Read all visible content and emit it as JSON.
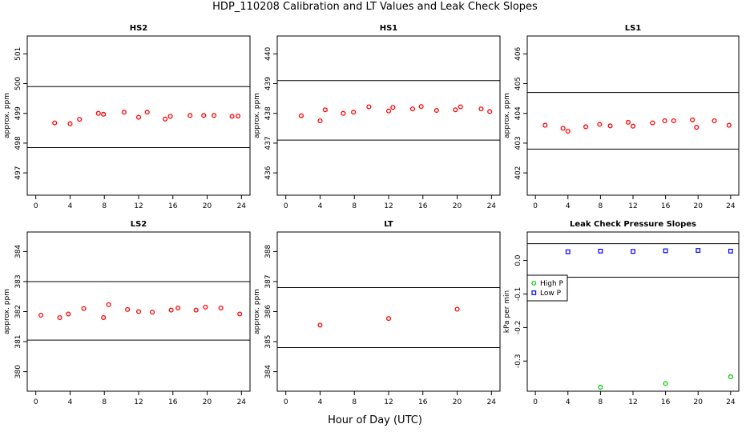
{
  "figure": {
    "title": "HDP_110208  Calibration and LT Values and Leak Check Slopes",
    "xlabel": "Hour of Day (UTC)"
  },
  "colors": {
    "marker": "#ff0000",
    "high_p": "#00cc00",
    "low_p": "#0000ff",
    "line": "#000000"
  },
  "chart_data": [
    {
      "type": "scatter",
      "title": "HS2",
      "ylabel": "approx. ppm",
      "xlim": [
        -1,
        25
      ],
      "ylim": [
        496.25,
        501.6
      ],
      "xticks": [
        0,
        4,
        8,
        12,
        16,
        20,
        24
      ],
      "yticks": [
        497,
        498,
        499,
        500,
        501
      ],
      "hlines": [
        497.85,
        499.9
      ],
      "series": [
        {
          "marker": "o",
          "color": "#ff0000",
          "points": [
            [
              2.2,
              498.68
            ],
            [
              4.0,
              498.65
            ],
            [
              5.1,
              498.8
            ],
            [
              7.3,
              499.0
            ],
            [
              7.9,
              498.97
            ],
            [
              10.3,
              499.04
            ],
            [
              12.0,
              498.87
            ],
            [
              13.0,
              499.04
            ],
            [
              15.1,
              498.81
            ],
            [
              15.7,
              498.9
            ],
            [
              18.0,
              498.93
            ],
            [
              19.6,
              498.93
            ],
            [
              20.8,
              498.93
            ],
            [
              22.9,
              498.9
            ],
            [
              23.6,
              498.91
            ]
          ]
        }
      ]
    },
    {
      "type": "scatter",
      "title": "HS1",
      "ylabel": "approx. ppm",
      "xlim": [
        -1,
        25
      ],
      "ylim": [
        435.25,
        440.6
      ],
      "xticks": [
        0,
        4,
        8,
        12,
        16,
        20,
        24
      ],
      "yticks": [
        436,
        437,
        438,
        439,
        440
      ],
      "hlines": [
        437.1,
        439.1
      ],
      "series": [
        {
          "marker": "o",
          "color": "#ff0000",
          "points": [
            [
              1.8,
              437.92
            ],
            [
              4.0,
              437.75
            ],
            [
              4.6,
              438.12
            ],
            [
              6.7,
              438.0
            ],
            [
              7.9,
              438.04
            ],
            [
              9.7,
              438.22
            ],
            [
              12.0,
              438.08
            ],
            [
              12.5,
              438.2
            ],
            [
              14.8,
              438.15
            ],
            [
              15.8,
              438.23
            ],
            [
              17.6,
              438.1
            ],
            [
              19.8,
              438.12
            ],
            [
              20.4,
              438.22
            ],
            [
              22.8,
              438.15
            ],
            [
              23.8,
              438.06
            ]
          ]
        }
      ]
    },
    {
      "type": "scatter",
      "title": "LS1",
      "ylabel": "approx. ppm",
      "xlim": [
        -1,
        25
      ],
      "ylim": [
        401.25,
        406.6
      ],
      "xticks": [
        0,
        4,
        8,
        12,
        16,
        20,
        24
      ],
      "yticks": [
        402,
        403,
        404,
        405,
        406
      ],
      "hlines": [
        402.8,
        404.7
      ],
      "series": [
        {
          "marker": "o",
          "color": "#ff0000",
          "points": [
            [
              1.2,
              403.6
            ],
            [
              3.4,
              403.5
            ],
            [
              4.0,
              403.4
            ],
            [
              6.2,
              403.55
            ],
            [
              7.9,
              403.63
            ],
            [
              9.2,
              403.58
            ],
            [
              11.4,
              403.7
            ],
            [
              12.0,
              403.57
            ],
            [
              14.4,
              403.68
            ],
            [
              15.9,
              403.75
            ],
            [
              17.0,
              403.75
            ],
            [
              19.3,
              403.78
            ],
            [
              19.8,
              403.53
            ],
            [
              22.0,
              403.75
            ],
            [
              23.8,
              403.6
            ]
          ]
        }
      ]
    },
    {
      "type": "scatter",
      "title": "LS2",
      "ylabel": "approx. ppm",
      "xlim": [
        -1,
        25
      ],
      "ylim": [
        379.35,
        384.65
      ],
      "xticks": [
        0,
        4,
        8,
        12,
        16,
        20,
        24
      ],
      "yticks": [
        380,
        381,
        382,
        383,
        384
      ],
      "hlines": [
        381.05,
        383.0
      ],
      "series": [
        {
          "marker": "o",
          "color": "#ff0000",
          "points": [
            [
              0.6,
              381.88
            ],
            [
              2.8,
              381.8
            ],
            [
              3.8,
              381.92
            ],
            [
              5.6,
              382.1
            ],
            [
              7.9,
              381.8
            ],
            [
              8.5,
              382.23
            ],
            [
              10.7,
              382.07
            ],
            [
              12.0,
              382.0
            ],
            [
              13.6,
              381.98
            ],
            [
              15.8,
              382.05
            ],
            [
              16.6,
              382.12
            ],
            [
              18.7,
              382.05
            ],
            [
              19.8,
              382.15
            ],
            [
              21.6,
              382.12
            ],
            [
              23.8,
              381.92
            ]
          ]
        }
      ]
    },
    {
      "type": "scatter",
      "title": "LT",
      "ylabel": "approx. ppm",
      "xlim": [
        -1,
        25
      ],
      "ylim": [
        383.35,
        388.65
      ],
      "xticks": [
        0,
        4,
        8,
        12,
        16,
        20,
        24
      ],
      "yticks": [
        384,
        385,
        386,
        387,
        388
      ],
      "hlines": [
        384.8,
        386.8
      ],
      "series": [
        {
          "marker": "o",
          "color": "#ff0000",
          "points": [
            [
              4.0,
              385.55
            ],
            [
              12.0,
              385.77
            ],
            [
              20.0,
              386.08
            ]
          ]
        }
      ]
    },
    {
      "type": "scatter",
      "title": "Leak Check Pressure Slopes",
      "ylabel": "kPa per min",
      "xlim": [
        -1,
        25
      ],
      "ylim": [
        -0.39,
        0.085
      ],
      "xticks": [
        0,
        4,
        8,
        12,
        16,
        20,
        24
      ],
      "yticks": [
        -0.3,
        -0.2,
        -0.1,
        0.0
      ],
      "ytick_labels": [
        "-0.3",
        "-0.2",
        "-0.1",
        "0.0"
      ],
      "hlines": [
        0.05,
        -0.05
      ],
      "legend": {
        "placement": "left",
        "entries": [
          "High P",
          "Low P"
        ]
      },
      "series": [
        {
          "name": "High P",
          "marker": "o",
          "color": "#00cc00",
          "points": [
            [
              8,
              -0.378
            ],
            [
              16,
              -0.367
            ],
            [
              24,
              -0.347
            ]
          ]
        },
        {
          "name": "Low P",
          "marker": "s",
          "color": "#0000ff",
          "points": [
            [
              4,
              0.026
            ],
            [
              8,
              0.028
            ],
            [
              12,
              0.027
            ],
            [
              16,
              0.029
            ],
            [
              20,
              0.03
            ],
            [
              24,
              0.028
            ]
          ]
        }
      ]
    }
  ]
}
